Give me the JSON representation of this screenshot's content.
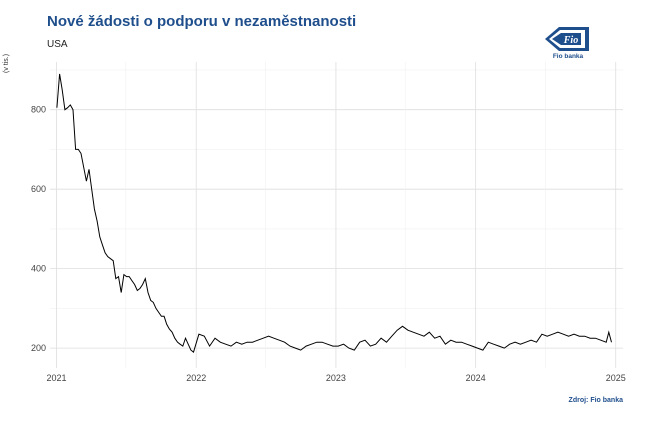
{
  "header": {
    "title": "Nové žádosti o podporu v nezaměstnanosti",
    "subtitle": "USA"
  },
  "logo": {
    "text": "Fio banka",
    "mark": "Fio",
    "color": "#1f4e8c"
  },
  "source_label": "Zdroj: Fio banka",
  "chart_data": {
    "type": "line",
    "ylabel": "(v tis.)",
    "xlabel": "",
    "x_tick_labels": [
      "2021",
      "2022",
      "2023",
      "2024",
      "2025"
    ],
    "y_tick_labels": [
      "200",
      "400",
      "600",
      "800"
    ],
    "y_ticks": [
      200,
      400,
      600,
      800
    ],
    "ylim": [
      150,
      920
    ],
    "xlim": [
      "2020-12-15",
      "2025-01-20"
    ],
    "grid": true,
    "line_color": "#000000",
    "series": [
      {
        "x": [
          "2021-01-02",
          "2021-01-09",
          "2021-01-16",
          "2021-01-23",
          "2021-01-30",
          "2021-02-06",
          "2021-02-13",
          "2021-02-20",
          "2021-02-27",
          "2021-03-06",
          "2021-03-13",
          "2021-03-20",
          "2021-03-27",
          "2021-04-03",
          "2021-04-10",
          "2021-04-17",
          "2021-04-24",
          "2021-05-01",
          "2021-05-08",
          "2021-05-15",
          "2021-05-22",
          "2021-05-29",
          "2021-06-05",
          "2021-06-12",
          "2021-06-19",
          "2021-06-26",
          "2021-07-03",
          "2021-07-10",
          "2021-07-17",
          "2021-07-24",
          "2021-07-31",
          "2021-08-07",
          "2021-08-14",
          "2021-08-21",
          "2021-08-28",
          "2021-09-04",
          "2021-09-11",
          "2021-09-18",
          "2021-09-25",
          "2021-10-02",
          "2021-10-09",
          "2021-10-16",
          "2021-10-23",
          "2021-10-30",
          "2021-11-06",
          "2021-11-13",
          "2021-11-20",
          "2021-11-27",
          "2021-12-04",
          "2021-12-11",
          "2021-12-18",
          "2021-12-25",
          "2022-01-08",
          "2022-01-22",
          "2022-02-05",
          "2022-02-19",
          "2022-03-05",
          "2022-03-19",
          "2022-04-02",
          "2022-04-16",
          "2022-04-30",
          "2022-05-14",
          "2022-05-28",
          "2022-06-11",
          "2022-06-25",
          "2022-07-09",
          "2022-07-23",
          "2022-08-06",
          "2022-08-20",
          "2022-09-03",
          "2022-09-17",
          "2022-10-01",
          "2022-10-15",
          "2022-10-29",
          "2022-11-12",
          "2022-11-26",
          "2022-12-10",
          "2022-12-24",
          "2023-01-07",
          "2023-01-21",
          "2023-02-04",
          "2023-02-18",
          "2023-03-04",
          "2023-03-18",
          "2023-04-01",
          "2023-04-15",
          "2023-04-29",
          "2023-05-13",
          "2023-05-27",
          "2023-06-10",
          "2023-06-24",
          "2023-07-08",
          "2023-07-22",
          "2023-08-05",
          "2023-08-19",
          "2023-09-02",
          "2023-09-16",
          "2023-09-30",
          "2023-10-14",
          "2023-10-28",
          "2023-11-11",
          "2023-11-25",
          "2023-12-09",
          "2023-12-23",
          "2024-01-06",
          "2024-01-20",
          "2024-02-03",
          "2024-02-17",
          "2024-03-02",
          "2024-03-16",
          "2024-03-30",
          "2024-04-13",
          "2024-04-27",
          "2024-05-11",
          "2024-05-25",
          "2024-06-08",
          "2024-06-22",
          "2024-07-06",
          "2024-07-20",
          "2024-08-03",
          "2024-08-17",
          "2024-08-31",
          "2024-09-14",
          "2024-09-28",
          "2024-10-12",
          "2024-10-26",
          "2024-11-09",
          "2024-11-23",
          "2024-12-07",
          "2024-12-14",
          "2024-12-21"
        ],
        "y": [
          805,
          890,
          850,
          800,
          805,
          812,
          800,
          700,
          700,
          690,
          655,
          620,
          650,
          600,
          550,
          520,
          480,
          460,
          440,
          430,
          425,
          420,
          375,
          380,
          340,
          385,
          380,
          380,
          370,
          360,
          345,
          350,
          360,
          375,
          340,
          320,
          315,
          300,
          290,
          280,
          280,
          260,
          248,
          240,
          225,
          215,
          210,
          205,
          225,
          210,
          195,
          190,
          235,
          230,
          205,
          225,
          215,
          210,
          205,
          215,
          210,
          215,
          215,
          220,
          225,
          230,
          225,
          220,
          215,
          205,
          200,
          195,
          205,
          210,
          215,
          215,
          210,
          205,
          205,
          210,
          200,
          195,
          215,
          220,
          205,
          210,
          225,
          215,
          230,
          245,
          255,
          245,
          240,
          235,
          230,
          240,
          225,
          230,
          210,
          220,
          215,
          215,
          210,
          205,
          200,
          195,
          215,
          210,
          205,
          200,
          210,
          215,
          210,
          215,
          220,
          215,
          235,
          230,
          235,
          240,
          235,
          230,
          235,
          230,
          230,
          225,
          225,
          220,
          215,
          240,
          215
        ]
      }
    ]
  }
}
